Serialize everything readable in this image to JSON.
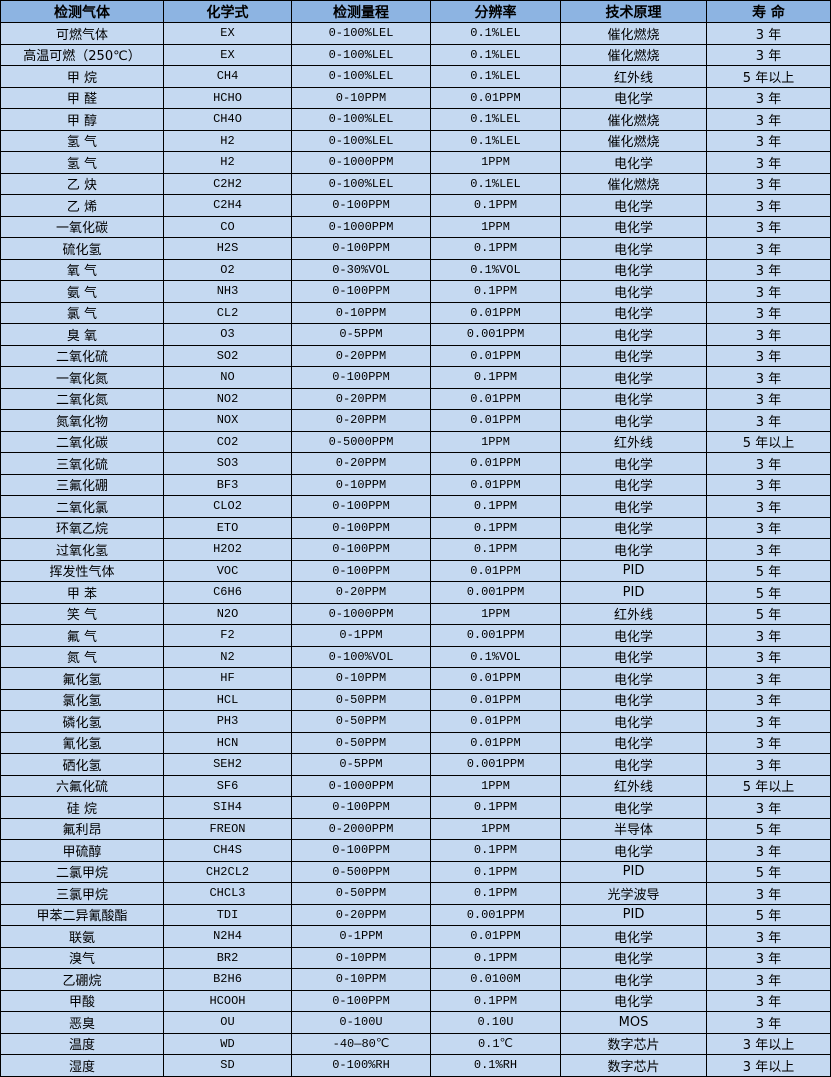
{
  "colors": {
    "header_bg": "#8db4e2",
    "row_bg": "#c5d9f1",
    "border": "#000000"
  },
  "headers": [
    "检测气体",
    "化学式",
    "检测量程",
    "分辨率",
    "技术原理",
    "寿 命"
  ],
  "rows": [
    [
      "可燃气体",
      "EX",
      "0-100%LEL",
      "0.1%LEL",
      "催化燃烧",
      "3 年"
    ],
    [
      "高温可燃（250℃）",
      "EX",
      "0-100%LEL",
      "0.1%LEL",
      "催化燃烧",
      "3 年"
    ],
    [
      "甲 烷",
      "CH4",
      "0-100%LEL",
      "0.1%LEL",
      "红外线",
      "5 年以上"
    ],
    [
      "甲 醛",
      "HCHO",
      "0-10PPM",
      "0.01PPM",
      "电化学",
      "3 年"
    ],
    [
      "甲 醇",
      "CH4O",
      "0-100%LEL",
      "0.1%LEL",
      "催化燃烧",
      "3 年"
    ],
    [
      "氢 气",
      "H2",
      "0-100%LEL",
      "0.1%LEL",
      "催化燃烧",
      "3 年"
    ],
    [
      "氢 气",
      "H2",
      "0-1000PPM",
      "1PPM",
      "电化学",
      "3 年"
    ],
    [
      "乙 炔",
      "C2H2",
      "0-100%LEL",
      "0.1%LEL",
      "催化燃烧",
      "3 年"
    ],
    [
      "乙 烯",
      "C2H4",
      "0-100PPM",
      "0.1PPM",
      "电化学",
      "3 年"
    ],
    [
      "一氧化碳",
      "CO",
      "0-1000PPM",
      "1PPM",
      "电化学",
      "3 年"
    ],
    [
      "硫化氢",
      "H2S",
      "0-100PPM",
      "0.1PPM",
      "电化学",
      "3 年"
    ],
    [
      "氧 气",
      "O2",
      "0-30%VOL",
      "0.1%VOL",
      "电化学",
      "3 年"
    ],
    [
      "氨 气",
      "NH3",
      "0-100PPM",
      "0.1PPM",
      "电化学",
      "3 年"
    ],
    [
      "氯 气",
      "CL2",
      "0-10PPM",
      "0.01PPM",
      "电化学",
      "3 年"
    ],
    [
      "臭 氧",
      "O3",
      "0-5PPM",
      "0.001PPM",
      "电化学",
      "3 年"
    ],
    [
      "二氧化硫",
      "SO2",
      "0-20PPM",
      "0.01PPM",
      "电化学",
      "3 年"
    ],
    [
      "一氧化氮",
      "NO",
      "0-100PPM",
      "0.1PPM",
      "电化学",
      "3 年"
    ],
    [
      "二氧化氮",
      "NO2",
      "0-20PPM",
      "0.01PPM",
      "电化学",
      "3 年"
    ],
    [
      "氮氧化物",
      "NOX",
      "0-20PPM",
      "0.01PPM",
      "电化学",
      "3 年"
    ],
    [
      "二氧化碳",
      "CO2",
      "0-5000PPM",
      "1PPM",
      "红外线",
      "5 年以上"
    ],
    [
      "三氧化硫",
      "SO3",
      "0-20PPM",
      "0.01PPM",
      "电化学",
      "3 年"
    ],
    [
      "三氟化硼",
      "BF3",
      "0-10PPM",
      "0.01PPM",
      "电化学",
      "3 年"
    ],
    [
      "二氧化氯",
      "CLO2",
      "0-100PPM",
      "0.1PPM",
      "电化学",
      "3 年"
    ],
    [
      "环氧乙烷",
      "ETO",
      "0-100PPM",
      "0.1PPM",
      "电化学",
      "3 年"
    ],
    [
      "过氧化氢",
      "H2O2",
      "0-100PPM",
      "0.1PPM",
      "电化学",
      "3 年"
    ],
    [
      "挥发性气体",
      "VOC",
      "0-100PPM",
      "0.01PPM",
      "PID",
      "5 年"
    ],
    [
      "甲 苯",
      "C6H6",
      "0-20PPM",
      "0.001PPM",
      "PID",
      "5 年"
    ],
    [
      "笑 气",
      "N2O",
      "0-1000PPM",
      "1PPM",
      "红外线",
      "5 年"
    ],
    [
      "氟 气",
      "F2",
      "0-1PPM",
      "0.001PPM",
      "电化学",
      "3 年"
    ],
    [
      "氮 气",
      "N2",
      "0-100%VOL",
      "0.1%VOL",
      "电化学",
      "3 年"
    ],
    [
      "氟化氢",
      "HF",
      "0-10PPM",
      "0.01PPM",
      "电化学",
      "3 年"
    ],
    [
      "氯化氢",
      "HCL",
      "0-50PPM",
      "0.01PPM",
      "电化学",
      "3 年"
    ],
    [
      "磷化氢",
      "PH3",
      "0-50PPM",
      "0.01PPM",
      "电化学",
      "3 年"
    ],
    [
      "氰化氢",
      "HCN",
      "0-50PPM",
      "0.01PPM",
      "电化学",
      "3 年"
    ],
    [
      "硒化氢",
      "SEH2",
      "0-5PPM",
      "0.001PPM",
      "电化学",
      "3 年"
    ],
    [
      "六氟化硫",
      "SF6",
      "0-1000PPM",
      "1PPM",
      "红外线",
      "5 年以上"
    ],
    [
      "硅 烷",
      "SIH4",
      "0-100PPM",
      "0.1PPM",
      "电化学",
      "3 年"
    ],
    [
      "氟利昂",
      "FREON",
      "0-2000PPM",
      "1PPM",
      "半导体",
      "5 年"
    ],
    [
      "甲硫醇",
      "CH4S",
      "0-100PPM",
      "0.1PPM",
      "电化学",
      "3 年"
    ],
    [
      "二氯甲烷",
      "CH2CL2",
      "0-500PPM",
      "0.1PPM",
      "PID",
      "5 年"
    ],
    [
      "三氯甲烷",
      "CHCL3",
      "0-50PPM",
      "0.1PPM",
      "光学波导",
      "3 年"
    ],
    [
      "甲苯二异氰酸酯",
      "TDI",
      "0-20PPM",
      "0.001PPM",
      "PID",
      "5 年"
    ],
    [
      "联氨",
      "N2H4",
      "0-1PPM",
      "0.01PPM",
      "电化学",
      "3 年"
    ],
    [
      "溴气",
      "BR2",
      "0-10PPM",
      "0.1PPM",
      "电化学",
      "3 年"
    ],
    [
      "乙硼烷",
      "B2H6",
      "0-10PPM",
      "0.0100M",
      "电化学",
      "3 年"
    ],
    [
      "甲酸",
      "HCOOH",
      "0-100PPM",
      "0.1PPM",
      "电化学",
      "3 年"
    ],
    [
      "恶臭",
      "OU",
      "0-100U",
      "0.10U",
      "MOS",
      "3 年"
    ],
    [
      "温度",
      "WD",
      "-40—80℃",
      "0.1℃",
      "数字芯片",
      "3 年以上"
    ],
    [
      "湿度",
      "SD",
      "0-100%RH",
      "0.1%RH",
      "数字芯片",
      "3 年以上"
    ]
  ]
}
